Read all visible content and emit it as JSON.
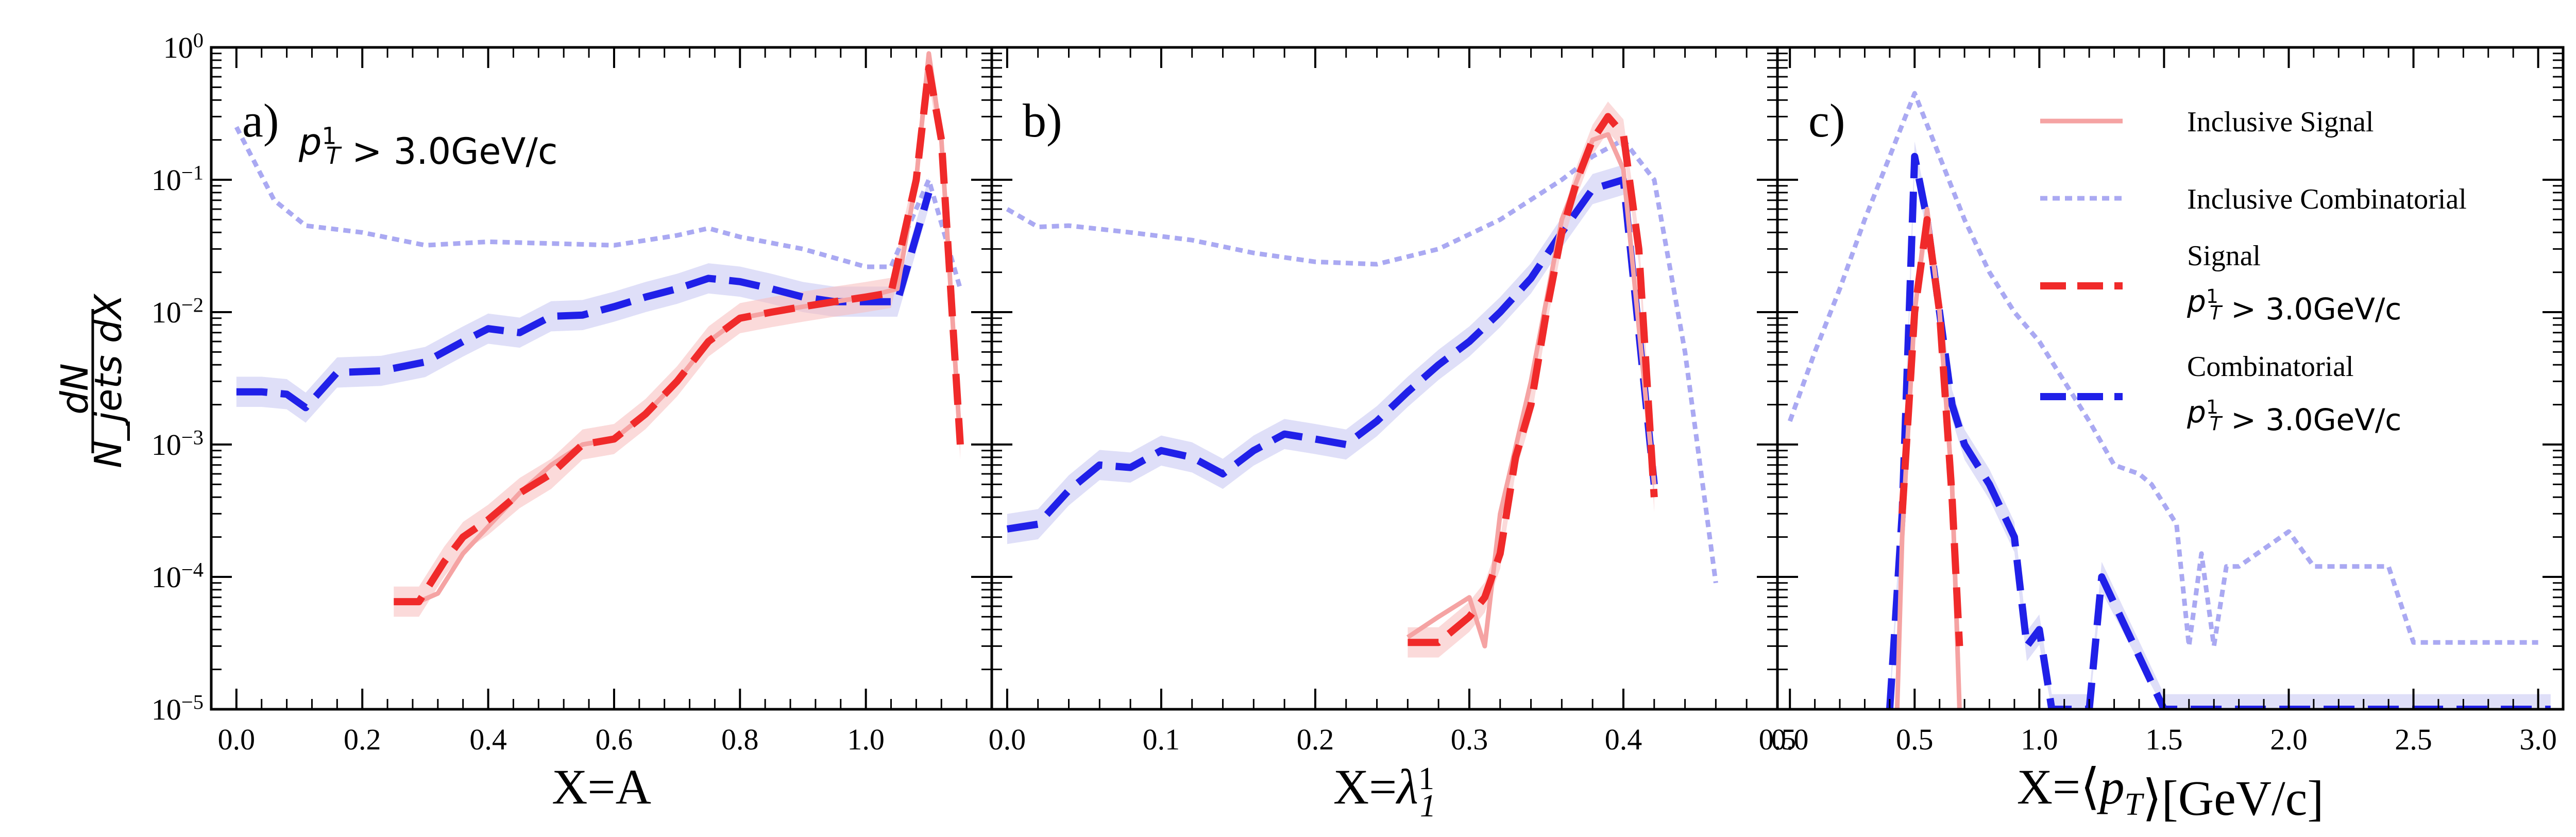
{
  "colors": {
    "inclusive_signal": "#f5a3a3",
    "inclusive_combinatorial": "#aaa9f2",
    "signal": "#f02a2a",
    "combinatorial": "#2020e8",
    "signal_band": "#f7bcbc",
    "combinatorial_band": "#c4c4f2"
  },
  "y_axis": {
    "label_numerator": "dN",
    "label_denominator": "N_jets dX",
    "scale": "log",
    "ylim": [
      1e-05,
      1
    ],
    "tick_labels": [
      {
        "value": 1e-05,
        "base": "10",
        "exp": "−5"
      },
      {
        "value": 0.0001,
        "base": "10",
        "exp": "−4"
      },
      {
        "value": 0.001,
        "base": "10",
        "exp": "−3"
      },
      {
        "value": 0.01,
        "base": "10",
        "exp": "−2"
      },
      {
        "value": 0.1,
        "base": "10",
        "exp": "−1"
      },
      {
        "value": 1,
        "base": "10",
        "exp": "0"
      }
    ]
  },
  "legend": {
    "entries": [
      {
        "series": "inclusive_signal",
        "line1": "Inclusive Signal",
        "line2": ""
      },
      {
        "series": "inclusive_combinatorial",
        "line1": "Inclusive Combinatorial",
        "line2": ""
      },
      {
        "series": "signal",
        "line1": "Signal",
        "line2": "p_T^1 > 3.0GeV/c"
      },
      {
        "series": "combinatorial",
        "line1": "Combinatorial",
        "line2": "p_T^1 > 3.0GeV/c"
      }
    ]
  },
  "chart_data": [
    {
      "type": "line",
      "panel_label": "a)",
      "cut_label": "p_T^1 > 3.0GeV/c",
      "xlabel": "X=A",
      "xlim": [
        -0.04,
        1.2
      ],
      "ylim": [
        1e-05,
        1
      ],
      "xticks": [
        0.0,
        0.2,
        0.4,
        0.6,
        0.8,
        1.0
      ],
      "xtick_labels": [
        "0.0",
        "0.2",
        "0.4",
        "0.6",
        "0.8",
        "1.0"
      ],
      "series": [
        {
          "name": "Inclusive Combinatorial",
          "key": "inclusive_combinatorial",
          "x": [
            0.0,
            0.06,
            0.11,
            0.2,
            0.3,
            0.4,
            0.5,
            0.6,
            0.7,
            0.75,
            0.8,
            0.9,
            1.0,
            1.04,
            1.1,
            1.15
          ],
          "y": [
            0.25,
            0.07,
            0.045,
            0.04,
            0.032,
            0.034,
            0.033,
            0.032,
            0.038,
            0.043,
            0.037,
            0.03,
            0.022,
            0.022,
            0.1,
            0.015
          ]
        },
        {
          "name": "Combinatorial",
          "key": "combinatorial",
          "x": [
            0.0,
            0.04,
            0.08,
            0.11,
            0.16,
            0.23,
            0.3,
            0.36,
            0.4,
            0.45,
            0.5,
            0.55,
            0.6,
            0.65,
            0.7,
            0.75,
            0.8,
            0.85,
            0.9,
            0.95,
            1.0,
            1.05,
            1.1
          ],
          "y": [
            0.0025,
            0.0025,
            0.0024,
            0.0019,
            0.0035,
            0.0036,
            0.0042,
            0.006,
            0.0075,
            0.007,
            0.0093,
            0.0095,
            0.011,
            0.013,
            0.015,
            0.018,
            0.017,
            0.015,
            0.013,
            0.012,
            0.012,
            0.012,
            0.08
          ]
        },
        {
          "name": "Inclusive Signal",
          "key": "inclusive_signal",
          "x": [
            0.29,
            0.32,
            0.36,
            0.4,
            0.45,
            0.5,
            0.55,
            0.6,
            0.65,
            0.7,
            0.75,
            0.8,
            0.85,
            0.9,
            0.95,
            1.0,
            1.05,
            1.08,
            1.1,
            1.12,
            1.15
          ],
          "y": [
            6.5e-05,
            7.5e-05,
            0.00015,
            0.00024,
            0.00043,
            0.0007,
            0.001,
            0.0011,
            0.0017,
            0.003,
            0.006,
            0.009,
            0.01,
            0.011,
            0.012,
            0.013,
            0.015,
            0.1,
            0.9,
            0.2,
            0.001
          ]
        },
        {
          "name": "Signal p_T^1 > 3.0GeV/c",
          "key": "signal",
          "x": [
            0.25,
            0.29,
            0.33,
            0.36,
            0.4,
            0.45,
            0.5,
            0.55,
            0.6,
            0.65,
            0.7,
            0.75,
            0.8,
            0.85,
            0.9,
            0.95,
            1.0,
            1.04,
            1.08,
            1.1,
            1.12,
            1.15
          ],
          "y": [
            6.5e-05,
            6.5e-05,
            0.00013,
            0.0002,
            0.00027,
            0.00043,
            0.0006,
            0.001,
            0.0011,
            0.0017,
            0.003,
            0.006,
            0.009,
            0.01,
            0.011,
            0.012,
            0.013,
            0.014,
            0.1,
            0.7,
            0.2,
            0.001
          ]
        }
      ]
    },
    {
      "type": "line",
      "panel_label": "b)",
      "xlabel": "X=λ_1^1",
      "xlim": [
        -0.01,
        0.5
      ],
      "ylim": [
        1e-05,
        1
      ],
      "xticks": [
        0.0,
        0.1,
        0.2,
        0.3,
        0.4,
        0.5
      ],
      "xtick_labels": [
        "0.0",
        "0.1",
        "0.2",
        "0.3",
        "0.4",
        "0.5"
      ],
      "series": [
        {
          "name": "Inclusive Combinatorial",
          "key": "inclusive_combinatorial",
          "x": [
            0.0,
            0.02,
            0.04,
            0.08,
            0.12,
            0.16,
            0.2,
            0.24,
            0.28,
            0.32,
            0.36,
            0.38,
            0.4,
            0.42,
            0.44,
            0.46
          ],
          "y": [
            0.06,
            0.044,
            0.045,
            0.04,
            0.035,
            0.028,
            0.024,
            0.023,
            0.03,
            0.05,
            0.1,
            0.15,
            0.2,
            0.1,
            0.005,
            9e-05
          ]
        },
        {
          "name": "Combinatorial",
          "key": "combinatorial",
          "x": [
            0.0,
            0.02,
            0.04,
            0.06,
            0.08,
            0.1,
            0.12,
            0.14,
            0.16,
            0.18,
            0.2,
            0.22,
            0.24,
            0.26,
            0.28,
            0.3,
            0.32,
            0.34,
            0.36,
            0.38,
            0.4,
            0.42
          ],
          "y": [
            0.00023,
            0.00025,
            0.00045,
            0.0007,
            0.00067,
            0.0009,
            0.0008,
            0.0006,
            0.0009,
            0.0012,
            0.0011,
            0.001,
            0.0015,
            0.0025,
            0.004,
            0.006,
            0.01,
            0.018,
            0.04,
            0.085,
            0.1,
            0.0005
          ]
        },
        {
          "name": "Inclusive Signal",
          "key": "inclusive_signal",
          "x": [
            0.26,
            0.28,
            0.3,
            0.31,
            0.32,
            0.34,
            0.36,
            0.38,
            0.39,
            0.4,
            0.42
          ],
          "y": [
            3.5e-05,
            5e-05,
            7e-05,
            3e-05,
            0.0003,
            0.003,
            0.05,
            0.2,
            0.22,
            0.12,
            0.0005
          ]
        },
        {
          "name": "Signal p_T^1 > 3.0GeV/c",
          "key": "signal",
          "x": [
            0.26,
            0.28,
            0.3,
            0.31,
            0.32,
            0.33,
            0.34,
            0.35,
            0.36,
            0.37,
            0.38,
            0.39,
            0.4,
            0.41,
            0.42
          ],
          "y": [
            3.2e-05,
            3.2e-05,
            5e-05,
            7e-05,
            0.00015,
            0.0008,
            0.002,
            0.01,
            0.04,
            0.1,
            0.2,
            0.3,
            0.22,
            0.03,
            0.0004
          ]
        }
      ]
    },
    {
      "type": "line",
      "panel_label": "c)",
      "xlabel": "X=⟨p_T⟩[GeV/c]",
      "xlim": [
        -0.05,
        3.1
      ],
      "ylim": [
        1e-05,
        1
      ],
      "xticks": [
        0.0,
        0.5,
        1.0,
        1.5,
        2.0,
        2.5,
        3.0
      ],
      "xtick_labels": [
        "0.0",
        "0.5",
        "1.0",
        "1.5",
        "2.0",
        "2.5",
        "3.0"
      ],
      "series": [
        {
          "name": "Inclusive Combinatorial",
          "key": "inclusive_combinatorial",
          "x": [
            0.0,
            0.1,
            0.2,
            0.3,
            0.4,
            0.5,
            0.6,
            0.7,
            0.8,
            0.9,
            1.0,
            1.1,
            1.2,
            1.3,
            1.4,
            1.45,
            1.55,
            1.6,
            1.65,
            1.7,
            1.75,
            1.8,
            2.0,
            2.1,
            2.4,
            2.5,
            3.0
          ],
          "y": [
            0.0015,
            0.005,
            0.015,
            0.05,
            0.15,
            0.45,
            0.15,
            0.05,
            0.02,
            0.01,
            0.006,
            0.003,
            0.0015,
            0.0007,
            0.0006,
            0.0005,
            0.00025,
            3e-05,
            0.00015,
            3e-05,
            0.00012,
            0.00012,
            0.00022,
            0.00012,
            0.00012,
            3.2e-05,
            3.2e-05
          ]
        },
        {
          "name": "Combinatorial",
          "key": "combinatorial",
          "x": [
            0.4,
            0.45,
            0.5,
            0.55,
            0.6,
            0.65,
            0.7,
            0.8,
            0.9,
            0.95,
            1.0,
            1.05,
            1.2,
            1.25,
            1.5,
            3.05
          ],
          "y": [
            1e-05,
            0.0003,
            0.15,
            0.05,
            0.01,
            0.002,
            0.001,
            0.0005,
            0.0002,
            3e-05,
            4e-05,
            1e-05,
            1e-05,
            0.0001,
            1e-05,
            1e-05
          ]
        },
        {
          "name": "Inclusive Signal",
          "key": "inclusive_signal",
          "x": [
            0.43,
            0.45,
            0.5,
            0.55,
            0.6,
            0.65,
            0.68
          ],
          "y": [
            1e-05,
            0.0002,
            0.01,
            0.06,
            0.01,
            0.0005,
            1e-05
          ]
        },
        {
          "name": "Signal p_T^1 > 3.0GeV/c",
          "key": "signal",
          "x": [
            0.45,
            0.5,
            0.55,
            0.6,
            0.65,
            0.68
          ],
          "y": [
            0.0003,
            0.01,
            0.05,
            0.01,
            0.0004,
            3e-05
          ]
        }
      ]
    }
  ]
}
